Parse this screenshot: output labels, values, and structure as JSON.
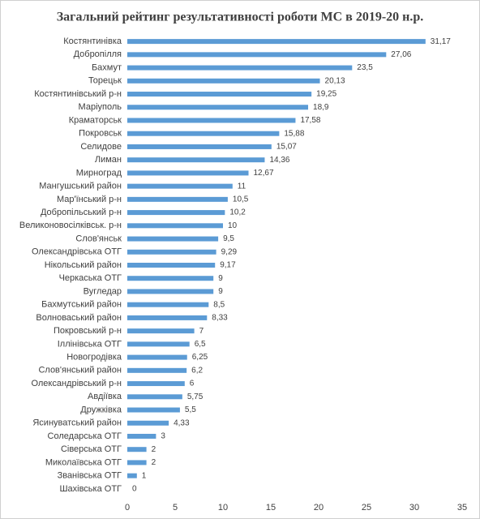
{
  "chart_data": {
    "type": "barh",
    "title": "Загальний рейтинг результативності роботи МС в 2019-20 н.р.",
    "categories": [
      "Костянтинівка",
      "Добропілля",
      "Бахмут",
      "Торецьк",
      "Костянтинівський р-н",
      "Маріуполь",
      "Краматорськ",
      "Покровськ",
      "Селидове",
      "Лиман",
      "Мирноград",
      "Мангушський район",
      "Мар'їнський р-н",
      "Добропільський р-н",
      "Великоновосілківськ. р-н",
      "Слов'янськ",
      "Олександрівська ОТГ",
      "Нікольський район",
      "Черкаська ОТГ",
      "Вугледар",
      "Бахмутський район",
      "Волноваський район",
      "Покровський р-н",
      "Іллінівська ОТГ",
      "Новогродівка",
      "Слов'янський район",
      "Олександрівський р-н",
      "Авдіївка",
      "Дружківка",
      "Ясинуватський район",
      "Соледарська ОТГ",
      "Сіверська ОТГ",
      "Миколаївська ОТГ",
      "Званівська ОТГ",
      "Шахівська ОТГ"
    ],
    "values": [
      31.17,
      27.06,
      23.5,
      20.13,
      19.25,
      18.9,
      17.58,
      15.88,
      15.07,
      14.36,
      12.67,
      11,
      10.5,
      10.2,
      10,
      9.5,
      9.29,
      9.17,
      9,
      9,
      8.5,
      8.33,
      7,
      6.5,
      6.25,
      6.2,
      6,
      5.75,
      5.5,
      4.33,
      3,
      2,
      2,
      1,
      0
    ],
    "value_labels": [
      "31,17",
      "27,06",
      "23,5",
      "20,13",
      "19,25",
      "18,9",
      "17,58",
      "15,88",
      "15,07",
      "14,36",
      "12,67",
      "11",
      "10,5",
      "10,2",
      "10",
      "9,5",
      "9,29",
      "9,17",
      "9",
      "9",
      "8,5",
      "8,33",
      "7",
      "6,5",
      "6,25",
      "6,2",
      "6",
      "5,75",
      "5,5",
      "4,33",
      "3",
      "2",
      "2",
      "1",
      "0"
    ],
    "color": "#5b9bd5",
    "xlim": [
      0,
      35
    ],
    "xticks": [
      0,
      5,
      10,
      15,
      20,
      25,
      30,
      35
    ],
    "grid": false
  }
}
